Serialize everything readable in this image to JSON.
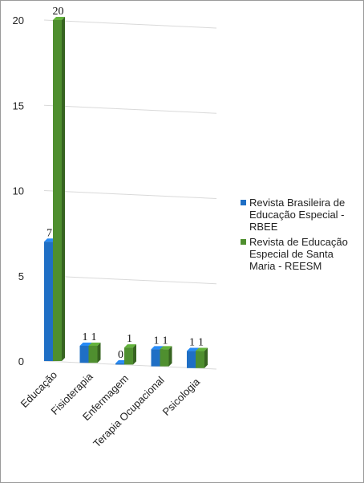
{
  "chart_data": {
    "type": "bar",
    "categories": [
      "Educação",
      "Fisioterapia",
      "Enfermagem",
      "Terapia Ocupacional",
      "Psicologia"
    ],
    "series": [
      {
        "name": "Revista Brasileira de Educação Especial - RBEE",
        "values": [
          7,
          1,
          0,
          1,
          1
        ],
        "color": "#1f6fc5"
      },
      {
        "name": "Revista de Educação Especial de Santa Maria - REESM",
        "values": [
          20,
          1,
          1,
          1,
          1
        ],
        "color": "#4f8f2f"
      }
    ],
    "yticks": [
      "0",
      "5",
      "10",
      "15",
      "20"
    ],
    "ylim": [
      0,
      20
    ],
    "grid": true,
    "legend_position": "right",
    "title": "",
    "xlabel": "",
    "ylabel": ""
  }
}
